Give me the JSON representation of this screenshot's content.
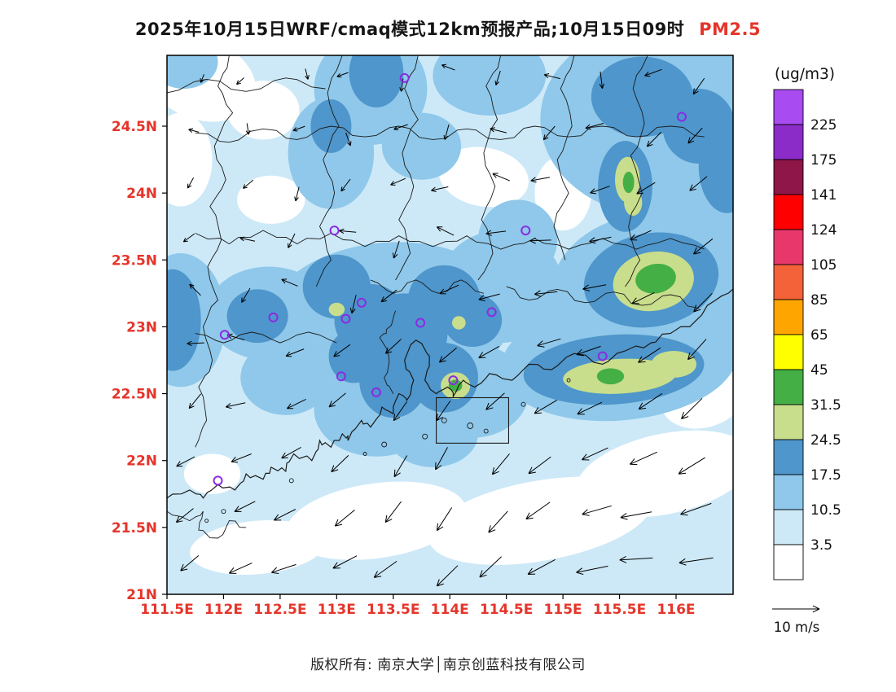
{
  "title": {
    "prefix": "2025年10月15日WRF/cmaq模式12km预报产品;10月15日09时",
    "pollutant": "PM2.5"
  },
  "footer": {
    "copyright": "版权所有: 南京大学│南京创蓝科技有限公司"
  },
  "styles": {
    "highlight_color": "#E5352B",
    "axis_label_color": "#E5352B",
    "station_marker_color": "#8A2BE2",
    "map_line_color": "#1a1a1a"
  },
  "colorbar": {
    "title": "(ug/m3)",
    "boundary_labels_top_to_bottom": [
      "225",
      "175",
      "141",
      "124",
      "105",
      "85",
      "65",
      "45",
      "31.5",
      "24.5",
      "17.5",
      "10.5",
      "3.5"
    ]
  },
  "wind_legend": {
    "label": "10 m/s"
  },
  "chart_data": {
    "type": "heatmap",
    "subtype": "filled-contour-forecast-map",
    "title": "2025年10月15日WRF/cmaq模式12km预报产品;10月15日09时 PM2.5",
    "units": "ug/m3",
    "x_axis": {
      "range": [
        111.5,
        116.5
      ],
      "ticks": [
        111.5,
        112,
        112.5,
        113,
        113.5,
        114,
        114.5,
        115,
        115.5,
        116
      ],
      "tick_labels": [
        "111.5E",
        "112E",
        "112.5E",
        "113E",
        "113.5E",
        "114E",
        "114.5E",
        "115E",
        "115.5E",
        "116E"
      ]
    },
    "y_axis": {
      "range": [
        21,
        25.03
      ],
      "ticks": [
        21,
        21.5,
        22,
        22.5,
        23,
        23.5,
        24,
        24.5
      ],
      "tick_labels": [
        "21N",
        "21.5N",
        "22N",
        "22.5N",
        "23N",
        "23.5N",
        "24N",
        "24.5N"
      ]
    },
    "levels": [
      3.5,
      10.5,
      17.5,
      24.5,
      31.5,
      45,
      65,
      85,
      105,
      124,
      141,
      175,
      225
    ],
    "palette_low_to_high": [
      "#FFFFFF",
      "#CDE9F8",
      "#8FC8EA",
      "#4E96CB",
      "#C9DE8C",
      "#44AF44",
      "#FFFF00",
      "#FFA500",
      "#F4623A",
      "#E8386B",
      "#FF0000",
      "#8E1648",
      "#8B2BC8",
      "#A84BF0"
    ],
    "fill_regions_format": "[color_index_into_palette_low_to_high, lon, lat, rx_deg, ry_deg, rot_deg]",
    "fill_regions": [
      [
        0,
        111.8,
        24.85,
        0.5,
        0.3,
        20
      ],
      [
        0,
        112.35,
        24.62,
        0.32,
        0.22,
        0
      ],
      [
        0,
        111.62,
        24.25,
        0.28,
        0.35,
        0
      ],
      [
        0,
        112.42,
        23.95,
        0.3,
        0.18,
        0
      ],
      [
        0,
        114.3,
        24.12,
        0.4,
        0.22,
        10
      ],
      [
        0,
        115.0,
        24.0,
        0.25,
        0.28,
        0
      ],
      [
        0,
        113.35,
        21.55,
        0.8,
        0.28,
        -8
      ],
      [
        0,
        114.8,
        21.55,
        1.0,
        0.3,
        -10
      ],
      [
        0,
        115.9,
        21.9,
        0.8,
        0.3,
        -12
      ],
      [
        0,
        116.25,
        22.5,
        0.4,
        0.25,
        -20
      ],
      [
        0,
        111.9,
        21.9,
        0.25,
        0.15,
        0
      ],
      [
        0,
        112.3,
        21.35,
        0.6,
        0.2,
        -5
      ],
      [
        2,
        115.85,
        24.55,
        1.05,
        0.72,
        0
      ],
      [
        2,
        113.3,
        24.78,
        0.5,
        0.42,
        0
      ],
      [
        2,
        112.95,
        24.3,
        0.38,
        0.42,
        0
      ],
      [
        2,
        113.45,
        23.05,
        1.1,
        0.58,
        -5
      ],
      [
        2,
        112.4,
        23.1,
        0.55,
        0.35,
        0
      ],
      [
        2,
        111.62,
        23.05,
        0.4,
        0.5,
        0
      ],
      [
        2,
        114.45,
        23.3,
        0.55,
        0.42,
        0
      ],
      [
        2,
        115.5,
        22.75,
        1.05,
        0.45,
        -5
      ],
      [
        2,
        115.75,
        23.35,
        0.85,
        0.5,
        -10
      ],
      [
        2,
        114.9,
        23.1,
        0.45,
        0.3,
        0
      ],
      [
        2,
        113.35,
        22.38,
        0.55,
        0.35,
        0
      ],
      [
        2,
        114.2,
        22.52,
        0.5,
        0.35,
        0
      ],
      [
        2,
        114.35,
        24.88,
        0.5,
        0.3,
        0
      ],
      [
        2,
        116.35,
        23.1,
        0.4,
        0.4,
        0
      ],
      [
        2,
        112.55,
        22.62,
        0.4,
        0.28,
        0
      ],
      [
        2,
        113.75,
        24.35,
        0.35,
        0.25,
        0
      ],
      [
        2,
        111.65,
        24.98,
        0.3,
        0.2,
        0
      ],
      [
        2,
        116.4,
        23.85,
        0.3,
        0.4,
        0
      ],
      [
        2,
        114.6,
        23.65,
        0.35,
        0.3,
        0
      ],
      [
        2,
        116.1,
        23.7,
        0.35,
        0.35,
        0
      ],
      [
        2,
        113.85,
        22.2,
        0.4,
        0.25,
        0
      ],
      [
        3,
        113.0,
        23.3,
        0.3,
        0.24,
        0
      ],
      [
        3,
        113.3,
        23.05,
        0.32,
        0.27,
        0
      ],
      [
        3,
        113.6,
        22.95,
        0.38,
        0.3,
        0
      ],
      [
        3,
        113.95,
        23.2,
        0.32,
        0.26,
        0
      ],
      [
        3,
        114.2,
        23.05,
        0.26,
        0.2,
        0
      ],
      [
        3,
        113.5,
        22.6,
        0.3,
        0.28,
        0
      ],
      [
        3,
        113.95,
        22.62,
        0.3,
        0.26,
        0
      ],
      [
        3,
        113.15,
        22.78,
        0.22,
        0.2,
        0
      ],
      [
        3,
        113.35,
        24.9,
        0.24,
        0.26,
        0
      ],
      [
        3,
        115.7,
        24.72,
        0.45,
        0.3,
        0
      ],
      [
        3,
        116.2,
        24.5,
        0.32,
        0.28,
        0
      ],
      [
        3,
        115.55,
        24.05,
        0.24,
        0.34,
        0
      ],
      [
        3,
        115.78,
        23.35,
        0.6,
        0.35,
        -10
      ],
      [
        3,
        115.45,
        22.68,
        0.8,
        0.26,
        -4
      ],
      [
        3,
        111.55,
        23.05,
        0.25,
        0.38,
        0
      ],
      [
        3,
        112.3,
        23.08,
        0.27,
        0.2,
        0
      ],
      [
        3,
        116.45,
        24.2,
        0.25,
        0.35,
        0
      ],
      [
        3,
        112.95,
        24.5,
        0.18,
        0.2,
        0
      ],
      [
        4,
        115.8,
        23.34,
        0.36,
        0.22,
        -10
      ],
      [
        4,
        115.5,
        22.63,
        0.5,
        0.13,
        -3
      ],
      [
        4,
        115.98,
        22.72,
        0.2,
        0.1,
        0
      ],
      [
        4,
        115.57,
        24.1,
        0.11,
        0.17,
        0
      ],
      [
        4,
        115.62,
        23.93,
        0.08,
        0.1,
        0
      ],
      [
        4,
        114.05,
        22.56,
        0.13,
        0.1,
        0
      ],
      [
        4,
        113.0,
        23.13,
        0.07,
        0.05,
        0
      ],
      [
        4,
        114.08,
        23.03,
        0.06,
        0.05,
        0
      ],
      [
        5,
        115.82,
        23.36,
        0.18,
        0.11,
        -10
      ],
      [
        5,
        115.42,
        22.63,
        0.12,
        0.06,
        0
      ],
      [
        5,
        115.58,
        24.08,
        0.05,
        0.08,
        0
      ],
      [
        5,
        114.05,
        22.56,
        0.06,
        0.045,
        0
      ]
    ],
    "stations_lon_lat": [
      [
        113.6,
        24.86
      ],
      [
        116.05,
        24.57
      ],
      [
        112.98,
        23.72
      ],
      [
        114.67,
        23.72
      ],
      [
        113.22,
        23.18
      ],
      [
        112.44,
        23.07
      ],
      [
        113.08,
        23.06
      ],
      [
        112.01,
        22.94
      ],
      [
        113.74,
        23.03
      ],
      [
        114.37,
        23.11
      ],
      [
        115.35,
        22.78
      ],
      [
        113.04,
        22.63
      ],
      [
        113.35,
        22.51
      ],
      [
        114.03,
        22.6
      ],
      [
        111.95,
        21.85
      ]
    ],
    "analysis_box": {
      "lon_min": 113.88,
      "lon_max": 114.52,
      "lat_min": 22.13,
      "lat_max": 22.47
    },
    "wind": {
      "legend_speed_label": "10 m/s",
      "general_direction": "northeasterly flow, arrows point toward the southwest, strongest over the sea",
      "grid": {
        "lon_start": 111.78,
        "lon_step": 0.45,
        "cols": 11,
        "lat_start": 21.25,
        "lat_step": 0.405,
        "rows": 10
      }
    }
  }
}
